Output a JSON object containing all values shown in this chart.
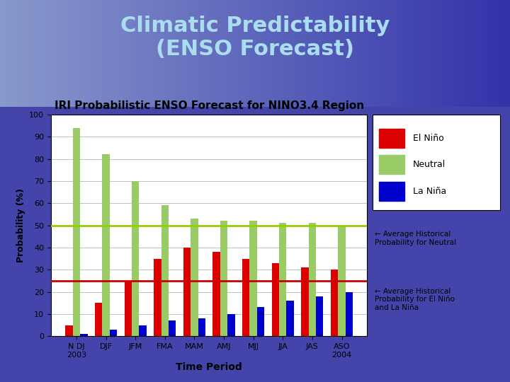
{
  "title": "Climatic Predictability\n(ENSO Forecast)",
  "chart_title": "IRI Probabilistic ENSO Forecast for NINO3.4 Region",
  "xlabel": "Time Period",
  "ylabel": "Probability (%)",
  "categories": [
    "N DJ\n2003",
    "DJF",
    "JFM",
    "FMA",
    "MAM",
    "AMJ",
    "MJJ",
    "JJA",
    "JAS",
    "ASO\n2004"
  ],
  "el_nino": [
    5,
    15,
    25,
    35,
    40,
    38,
    35,
    33,
    31,
    30
  ],
  "neutral": [
    94,
    82,
    70,
    59,
    53,
    52,
    52,
    51,
    51,
    50
  ],
  "la_nina": [
    1,
    3,
    5,
    7,
    8,
    10,
    13,
    16,
    18,
    20
  ],
  "el_nino_color": "#dd0000",
  "neutral_color": "#99cc66",
  "la_nina_color": "#0000cc",
  "avg_neutral": 50,
  "avg_el_nino_la_nina": 25,
  "avg_neutral_color": "#99cc00",
  "avg_el_nino_la_nina_color": "#cc0000",
  "ylim": [
    0,
    100
  ],
  "yticks": [
    0,
    10,
    20,
    30,
    40,
    50,
    60,
    70,
    80,
    90,
    100
  ],
  "background_top": "#3333aa",
  "background_bottom": "#8888cc",
  "chart_bg": "#ffffff",
  "legend_labels": [
    "El Niño",
    "Neutral",
    "La Niña"
  ],
  "annotation_neutral": "← Average Historical\nProbability for Neutral",
  "annotation_el_nina": "← Average Historical\nProbability for El Niño\nand La Niña"
}
